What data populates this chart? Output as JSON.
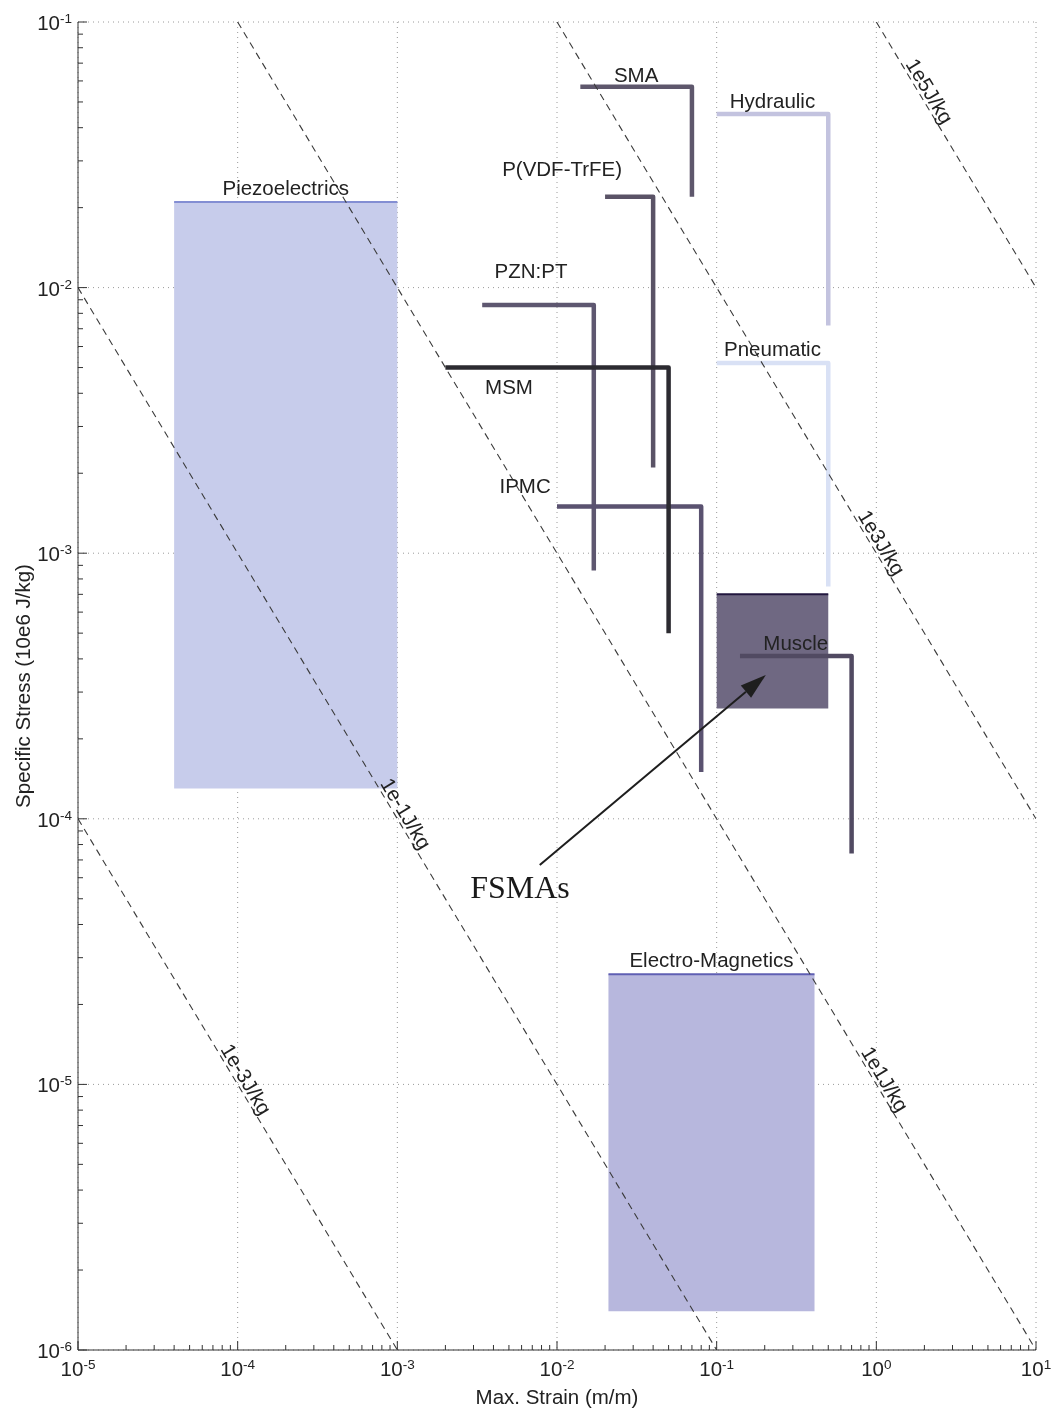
{
  "chart_data": {
    "type": "line",
    "xlabel": "Max. Strain (m/m)",
    "ylabel": "Specific Stress (10e6 J/kg)",
    "log": "xy",
    "xlim": [
      1e-05,
      10
    ],
    "ylim": [
      1e-06,
      0.1
    ],
    "grid": true,
    "xticks": [
      {
        "value": 1e-05,
        "label": "10$^{-5}$"
      },
      {
        "value": 2e-05,
        "label": null
      },
      {
        "value": 3e-05,
        "label": null
      },
      {
        "value": 4e-05,
        "label": null
      },
      {
        "value": 5e-05,
        "label": null
      },
      {
        "value": 6e-05,
        "label": null
      },
      {
        "value": 7e-05,
        "label": null
      },
      {
        "value": 8e-05,
        "label": null
      },
      {
        "value": 9e-05,
        "label": null
      },
      {
        "value": 0.0001,
        "label": "10$^{-4}$"
      },
      {
        "value": 0.0002,
        "label": null
      },
      {
        "value": 0.0003,
        "label": null
      },
      {
        "value": 0.0004,
        "label": null
      },
      {
        "value": 0.0005,
        "label": null
      },
      {
        "value": 0.0006,
        "label": null
      },
      {
        "value": 0.0007,
        "label": null
      },
      {
        "value": 0.0008,
        "label": null
      },
      {
        "value": 0.0009,
        "label": null
      },
      {
        "value": 0.001,
        "label": "10$^{-3}$"
      },
      {
        "value": 0.002,
        "label": null
      },
      {
        "value": 0.003,
        "label": null
      },
      {
        "value": 0.004,
        "label": null
      },
      {
        "value": 0.005,
        "label": null
      },
      {
        "value": 0.006,
        "label": null
      },
      {
        "value": 0.007,
        "label": null
      },
      {
        "value": 0.008,
        "label": null
      },
      {
        "value": 0.009,
        "label": null
      },
      {
        "value": 0.01,
        "label": "10$^{-2}$"
      },
      {
        "value": 0.02,
        "label": null
      },
      {
        "value": 0.03,
        "label": null
      },
      {
        "value": 0.04,
        "label": null
      },
      {
        "value": 0.05,
        "label": null
      },
      {
        "value": 0.06,
        "label": null
      },
      {
        "value": 0.07,
        "label": null
      },
      {
        "value": 0.08,
        "label": null
      },
      {
        "value": 0.09,
        "label": null
      },
      {
        "value": 0.1,
        "label": "10$^{-1}$"
      },
      {
        "value": 0.2,
        "label": null
      },
      {
        "value": 0.3,
        "label": null
      },
      {
        "value": 0.4,
        "label": null
      },
      {
        "value": 0.5,
        "label": null
      },
      {
        "value": 0.6,
        "label": null
      },
      {
        "value": 0.7,
        "label": null
      },
      {
        "value": 0.8,
        "label": null
      },
      {
        "value": 0.9,
        "label": null
      },
      {
        "value": 1,
        "label": "10$^{0}$"
      },
      {
        "value": 2,
        "label": null
      },
      {
        "value": 3,
        "label": null
      },
      {
        "value": 4,
        "label": null
      },
      {
        "value": 5,
        "label": null
      },
      {
        "value": 6,
        "label": null
      },
      {
        "value": 7,
        "label": null
      },
      {
        "value": 8,
        "label": null
      },
      {
        "value": 9,
        "label": null
      },
      {
        "value": 10,
        "label": "10$^{1}$"
      }
    ],
    "yticks": [
      {
        "value": 1e-06,
        "label": "10$^{-6}$"
      },
      {
        "value": 2e-06,
        "label": null
      },
      {
        "value": 3e-06,
        "label": null
      },
      {
        "value": 4e-06,
        "label": null
      },
      {
        "value": 5e-06,
        "label": null
      },
      {
        "value": 6e-06,
        "label": null
      },
      {
        "value": 7e-06,
        "label": null
      },
      {
        "value": 8e-06,
        "label": null
      },
      {
        "value": 9e-06,
        "label": null
      },
      {
        "value": 1e-05,
        "label": "10$^{-5}$"
      },
      {
        "value": 2e-05,
        "label": null
      },
      {
        "value": 3e-05,
        "label": null
      },
      {
        "value": 4e-05,
        "label": null
      },
      {
        "value": 5e-05,
        "label": null
      },
      {
        "value": 6e-05,
        "label": null
      },
      {
        "value": 7e-05,
        "label": null
      },
      {
        "value": 8e-05,
        "label": null
      },
      {
        "value": 9e-05,
        "label": null
      },
      {
        "value": 0.0001,
        "label": "10$^{-4}$"
      },
      {
        "value": 0.0002,
        "label": null
      },
      {
        "value": 0.0003,
        "label": null
      },
      {
        "value": 0.0004,
        "label": null
      },
      {
        "value": 0.0005,
        "label": null
      },
      {
        "value": 0.0006,
        "label": null
      },
      {
        "value": 0.0007,
        "label": null
      },
      {
        "value": 0.0008,
        "label": null
      },
      {
        "value": 0.0009,
        "label": null
      },
      {
        "value": 0.001,
        "label": "10$^{-3}$"
      },
      {
        "value": 0.002,
        "label": null
      },
      {
        "value": 0.003,
        "label": null
      },
      {
        "value": 0.004,
        "label": null
      },
      {
        "value": 0.005,
        "label": null
      },
      {
        "value": 0.006,
        "label": null
      },
      {
        "value": 0.007,
        "label": null
      },
      {
        "value": 0.008,
        "label": null
      },
      {
        "value": 0.009,
        "label": null
      },
      {
        "value": 0.01,
        "label": "10$^{-2}$"
      },
      {
        "value": 0.02,
        "label": null
      },
      {
        "value": 0.03,
        "label": null
      },
      {
        "value": 0.04,
        "label": null
      },
      {
        "value": 0.05,
        "label": null
      },
      {
        "value": 0.06,
        "label": null
      },
      {
        "value": 0.07,
        "label": null
      },
      {
        "value": 0.08,
        "label": null
      },
      {
        "value": 0.09,
        "label": null
      },
      {
        "value": 0.1,
        "label": "10$^{-1}$"
      }
    ],
    "series": [
      {
        "name": "Piezoelectrics",
        "color": "#838ed3",
        "x": [
          4e-05,
          0.001
        ],
        "values": [
          0.021,
          0.021
        ],
        "lower": [
          0.00013,
          0.00013
        ],
        "upper": [
          0.021,
          0.021
        ]
      },
      {
        "name": "Electro-Magnetics",
        "color": "#5f5fb3",
        "x": [
          0.021,
          0.41
        ],
        "values": [
          2.6e-05,
          2.6e-05
        ],
        "lower": [
          1.4e-06,
          1.4e-06
        ],
        "upper": [
          2.6e-05,
          2.6e-05
        ]
      },
      {
        "color": "#22173f",
        "x": [
          0.1,
          0.5
        ],
        "values": [
          0.0007,
          0.0007
        ],
        "lower": [
          0.00026,
          0.00026
        ],
        "upper": [
          0.0007,
          0.0007
        ]
      },
      {
        "name": "SMA",
        "color": "#5e576c",
        "x": [
          0.014,
          0.07,
          0.07
        ],
        "values": [
          0.057,
          0.057,
          0.022
        ]
      },
      {
        "name": "Hydraulic",
        "color": "#c3c3df",
        "x": [
          0.1,
          0.5,
          0.5
        ],
        "values": [
          0.045,
          0.045,
          0.0072
        ]
      },
      {
        "name": "P(VDF-TrFE)",
        "color": "#5a5366",
        "x": [
          0.02,
          0.04,
          0.04
        ],
        "values": [
          0.022,
          0.022,
          0.0021
        ]
      },
      {
        "name": "PZN:PT",
        "color": "#5e5770",
        "x": [
          0.0034,
          0.017,
          0.017
        ],
        "values": [
          0.0086,
          0.0086,
          0.00086
        ]
      },
      {
        "name": "IPMC",
        "color": "#5a5270",
        "x": [
          0.01,
          0.08,
          0.08
        ],
        "values": [
          0.0015,
          0.0015,
          0.00015
        ]
      },
      {
        "name": "MSM",
        "color": "#2c2b31",
        "x": [
          0.002,
          0.05,
          0.05
        ],
        "values": [
          0.005,
          0.005,
          0.0005
        ]
      },
      {
        "name": "Pneumatic",
        "color": "#d9e1f5",
        "x": [
          0.1,
          0.5,
          0.5
        ],
        "values": [
          0.0052,
          0.0052,
          0.00075
        ]
      },
      {
        "name": "Muscle",
        "color": "#514a62",
        "x": [
          0.14,
          0.7,
          0.7
        ],
        "values": [
          0.00041,
          0.00041,
          7.4e-05
        ]
      },
      {
        "name": "1e-3J/kg",
        "color": "#3a3a3a",
        "line_style": "dashed",
        "x": [
          1e-05,
          0.001
        ],
        "values": [
          0.0001,
          1e-06
        ]
      },
      {
        "name": "1e-1J/kg",
        "color": "#3a3a3a",
        "line_style": "dashed",
        "x": [
          1e-05,
          0.1
        ],
        "values": [
          0.01,
          1e-06
        ]
      },
      {
        "name": "1e1J/kg",
        "color": "#3a3a3a",
        "line_style": "dashed",
        "x": [
          0.0001,
          10
        ],
        "values": [
          0.1,
          1e-06
        ]
      },
      {
        "name": "1e3J/kg",
        "color": "#3a3a3a",
        "line_style": "dashed",
        "x": [
          0.01,
          10
        ],
        "values": [
          0.1,
          0.0001
        ]
      },
      {
        "name": "1e5J/kg",
        "color": "#3a3a3a",
        "line_style": "dashed",
        "x": [
          1,
          10
        ],
        "values": [
          0.1,
          0.01
        ]
      }
    ],
    "annotations": [
      "FSMAs"
    ]
  }
}
